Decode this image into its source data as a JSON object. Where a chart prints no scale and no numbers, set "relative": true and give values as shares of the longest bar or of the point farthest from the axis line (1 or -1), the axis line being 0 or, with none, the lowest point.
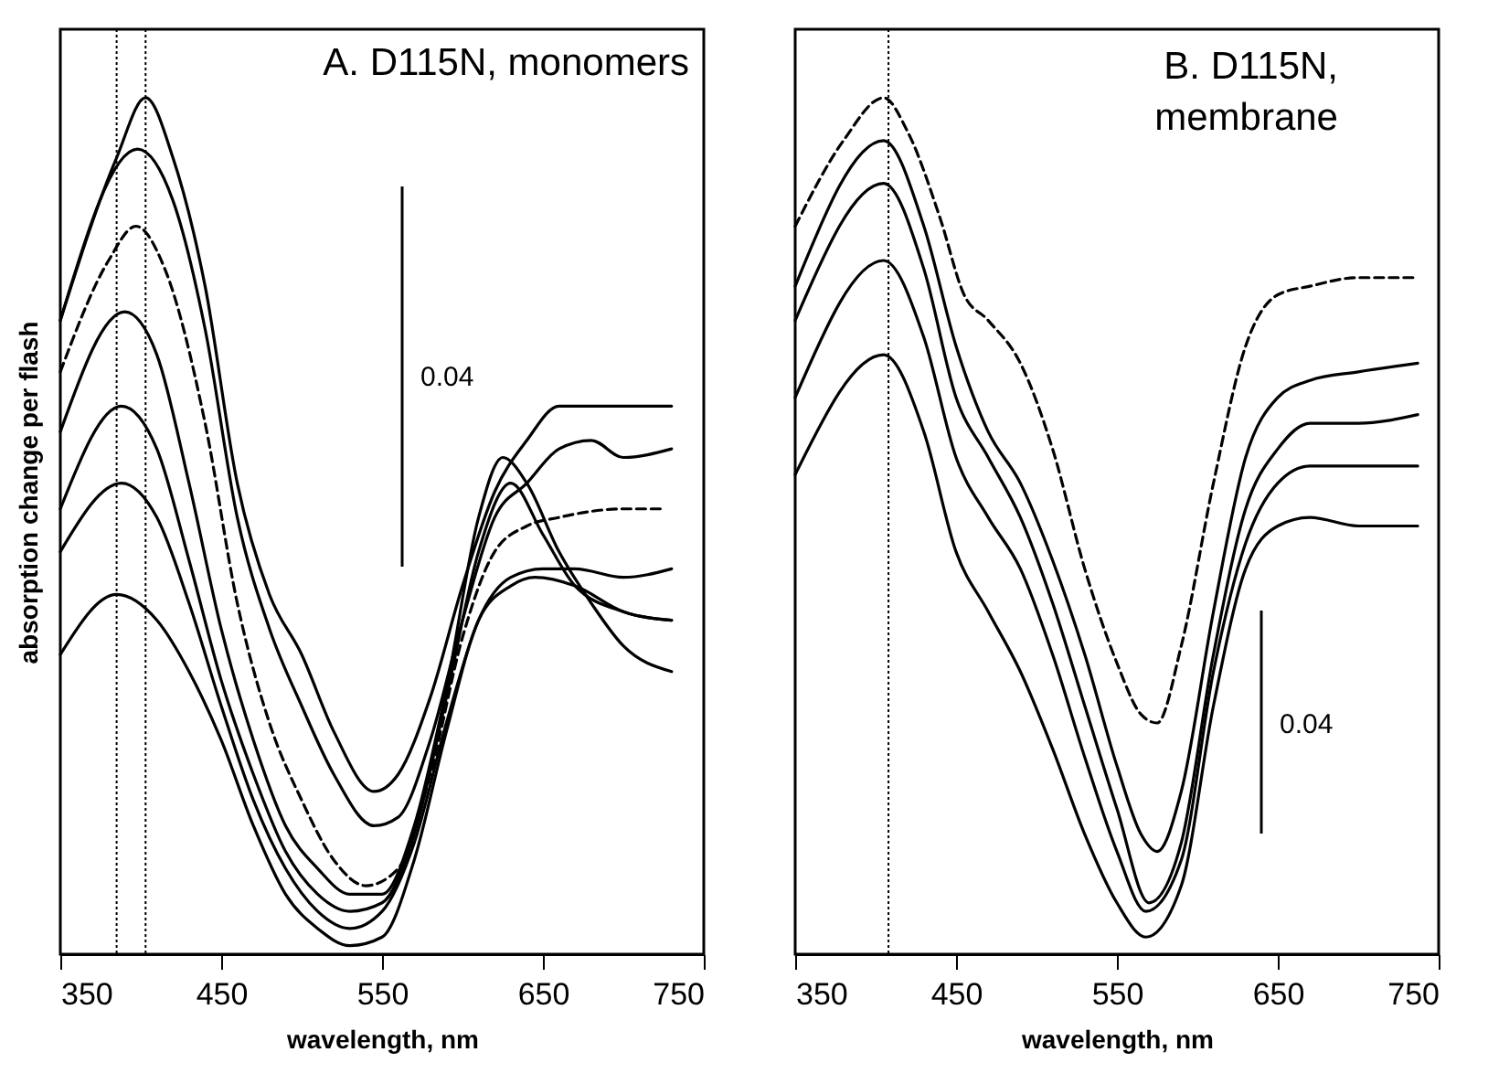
{
  "chart_data": [
    {
      "type": "line",
      "title": "A. D115N, monomers",
      "xlabel": "wavelength, nm",
      "ylabel": "absorption change per flash",
      "relative": true,
      "xlim": [
        350,
        750
      ],
      "xticks": [
        350,
        450,
        550,
        650,
        750
      ],
      "grid": false,
      "legend": false,
      "marker": "none",
      "line_style": "solid",
      "annotations": [
        "0.04"
      ],
      "ref_lines": [
        {
          "axis": "x",
          "value": 385,
          "color": "#000000",
          "line_style": "dotted"
        },
        {
          "axis": "x",
          "value": 403,
          "color": "#000000",
          "line_style": "dotted"
        }
      ],
      "series": [
        {
          "color": "#000000",
          "x": [
            350,
            385,
            403,
            420,
            440,
            460,
            480,
            500,
            520,
            545,
            560,
            580,
            600,
            620,
            640,
            660,
            680,
            700,
            730
          ],
          "values": [
            0.74,
            0.93,
            1.0,
            0.93,
            0.78,
            0.55,
            0.42,
            0.35,
            0.26,
            0.19,
            0.21,
            0.3,
            0.43,
            0.54,
            0.6,
            0.64,
            0.64,
            0.64,
            0.64
          ]
        },
        {
          "color": "#000000",
          "x": [
            350,
            398,
            420,
            440,
            460,
            480,
            500,
            520,
            545,
            560,
            580,
            600,
            620,
            640,
            660,
            680,
            700,
            730
          ],
          "values": [
            0.74,
            0.94,
            0.88,
            0.73,
            0.51,
            0.38,
            0.29,
            0.21,
            0.15,
            0.16,
            0.25,
            0.39,
            0.51,
            0.55,
            0.59,
            0.6,
            0.58,
            0.59
          ]
        },
        {
          "color": "#000000",
          "line_style": "dashed",
          "x": [
            350,
            380,
            397,
            415,
            440,
            460,
            480,
            500,
            520,
            540,
            560,
            580,
            600,
            620,
            640,
            660,
            700,
            725
          ],
          "values": [
            0.68,
            0.81,
            0.85,
            0.8,
            0.62,
            0.41,
            0.27,
            0.18,
            0.11,
            0.08,
            0.1,
            0.21,
            0.37,
            0.47,
            0.5,
            0.51,
            0.52,
            0.52
          ]
        },
        {
          "color": "#000000",
          "x": [
            350,
            390,
            410,
            430,
            450,
            470,
            490,
            510,
            530,
            550,
            570,
            590,
            610,
            625,
            640,
            660,
            680,
            700,
            730
          ],
          "values": [
            0.61,
            0.75,
            0.7,
            0.55,
            0.38,
            0.25,
            0.15,
            0.1,
            0.07,
            0.07,
            0.15,
            0.31,
            0.51,
            0.58,
            0.55,
            0.47,
            0.41,
            0.36,
            0.33
          ]
        },
        {
          "color": "#000000",
          "x": [
            350,
            388,
            410,
            430,
            450,
            470,
            490,
            510,
            530,
            550,
            570,
            590,
            610,
            630,
            650,
            670,
            700,
            730
          ],
          "values": [
            0.52,
            0.64,
            0.59,
            0.46,
            0.32,
            0.21,
            0.12,
            0.07,
            0.05,
            0.06,
            0.14,
            0.3,
            0.47,
            0.55,
            0.49,
            0.43,
            0.4,
            0.39
          ]
        },
        {
          "color": "#000000",
          "x": [
            350,
            388,
            410,
            430,
            450,
            470,
            490,
            510,
            530,
            550,
            570,
            590,
            610,
            630,
            650,
            670,
            700,
            730
          ],
          "values": [
            0.47,
            0.55,
            0.51,
            0.41,
            0.29,
            0.18,
            0.1,
            0.05,
            0.03,
            0.05,
            0.13,
            0.27,
            0.39,
            0.44,
            0.45,
            0.45,
            0.44,
            0.45
          ]
        },
        {
          "color": "#000000",
          "x": [
            350,
            385,
            410,
            430,
            450,
            470,
            490,
            510,
            530,
            550,
            570,
            590,
            610,
            630,
            645,
            670,
            700,
            730
          ],
          "values": [
            0.35,
            0.42,
            0.39,
            0.33,
            0.25,
            0.15,
            0.07,
            0.03,
            0.01,
            0.02,
            0.11,
            0.26,
            0.39,
            0.43,
            0.44,
            0.43,
            0.4,
            0.39
          ]
        }
      ]
    },
    {
      "type": "line",
      "title": "B. D115N,\nmembrane",
      "xlabel": "wavelength, nm",
      "relative": true,
      "xlim": [
        350,
        750
      ],
      "xticks": [
        350,
        450,
        550,
        650,
        750
      ],
      "grid": false,
      "legend": false,
      "marker": "none",
      "line_style": "solid",
      "annotations": [
        "0.04"
      ],
      "ref_lines": [
        {
          "axis": "x",
          "value": 408,
          "color": "#000000",
          "line_style": "dotted"
        }
      ],
      "series": [
        {
          "color": "#000000",
          "line_style": "dashed",
          "x": [
            350,
            380,
            405,
            420,
            440,
            455,
            470,
            490,
            510,
            530,
            550,
            565,
            575,
            590,
            610,
            630,
            650,
            670,
            700,
            737
          ],
          "values": [
            0.85,
            0.95,
            1.0,
            0.96,
            0.86,
            0.77,
            0.74,
            0.69,
            0.59,
            0.45,
            0.34,
            0.28,
            0.27,
            0.36,
            0.55,
            0.71,
            0.77,
            0.78,
            0.79,
            0.79
          ]
        },
        {
          "color": "#000000",
          "x": [
            350,
            405,
            430,
            450,
            470,
            490,
            510,
            530,
            550,
            565,
            575,
            590,
            610,
            630,
            650,
            670,
            700,
            737
          ],
          "values": [
            0.78,
            0.95,
            0.85,
            0.71,
            0.61,
            0.55,
            0.46,
            0.35,
            0.22,
            0.14,
            0.12,
            0.19,
            0.4,
            0.58,
            0.65,
            0.67,
            0.68,
            0.69
          ]
        },
        {
          "color": "#000000",
          "x": [
            350,
            405,
            430,
            450,
            470,
            490,
            510,
            530,
            550,
            570,
            590,
            610,
            630,
            650,
            670,
            700,
            737
          ],
          "values": [
            0.74,
            0.9,
            0.8,
            0.65,
            0.58,
            0.51,
            0.41,
            0.29,
            0.17,
            0.06,
            0.13,
            0.35,
            0.52,
            0.59,
            0.62,
            0.62,
            0.63
          ]
        },
        {
          "color": "#000000",
          "x": [
            350,
            405,
            430,
            450,
            470,
            490,
            510,
            530,
            550,
            568,
            590,
            610,
            630,
            650,
            670,
            700,
            737
          ],
          "values": [
            0.65,
            0.81,
            0.72,
            0.58,
            0.51,
            0.45,
            0.35,
            0.23,
            0.12,
            0.05,
            0.11,
            0.33,
            0.48,
            0.55,
            0.57,
            0.57,
            0.57
          ]
        },
        {
          "color": "#000000",
          "x": [
            350,
            405,
            430,
            450,
            470,
            490,
            510,
            530,
            550,
            568,
            590,
            610,
            630,
            650,
            670,
            700,
            737
          ],
          "values": [
            0.56,
            0.7,
            0.61,
            0.47,
            0.4,
            0.33,
            0.24,
            0.14,
            0.06,
            0.02,
            0.08,
            0.29,
            0.45,
            0.5,
            0.51,
            0.5,
            0.5
          ]
        }
      ]
    }
  ]
}
